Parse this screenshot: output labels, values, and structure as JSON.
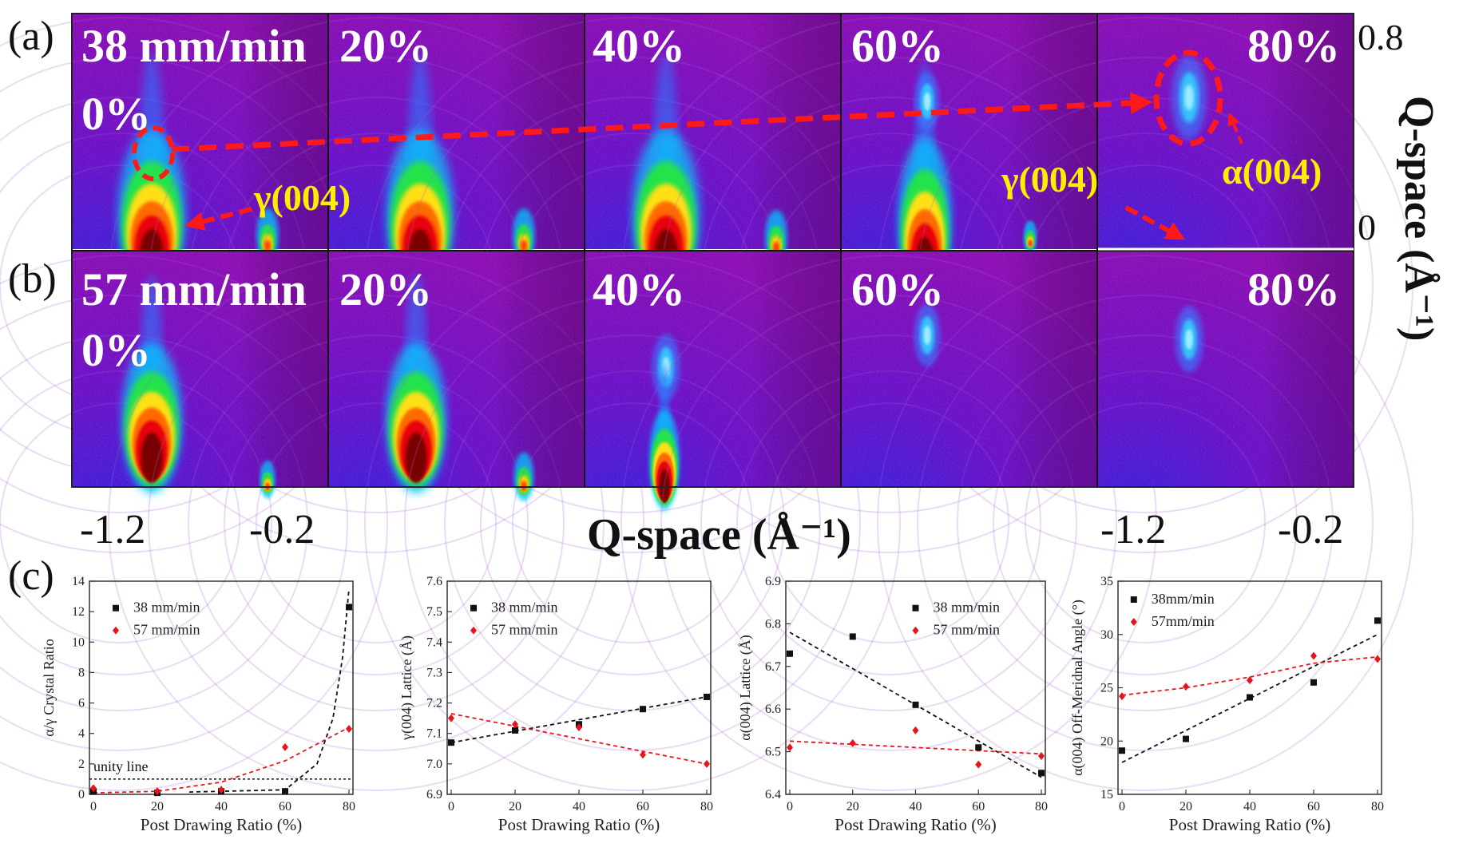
{
  "panel_labels": {
    "a": "(a)",
    "b": "(b)",
    "c": "(c)"
  },
  "row_a": {
    "tiles": [
      {
        "label_line1": "38 mm/min",
        "label_line2": "0%"
      },
      {
        "label_line1": "20%",
        "label_line2": ""
      },
      {
        "label_line1": "40%",
        "label_line2": ""
      },
      {
        "label_line1": "60%",
        "label_line2": ""
      },
      {
        "label_line1": "80%",
        "label_line2": ""
      }
    ],
    "annotations": {
      "gamma_left": "γ(004)",
      "gamma_right": "γ(004)",
      "alpha": "α(004)"
    }
  },
  "row_b": {
    "tiles": [
      {
        "label_line1": "57 mm/min",
        "label_line2": "0%"
      },
      {
        "label_line1": "20%",
        "label_line2": ""
      },
      {
        "label_line1": "40%",
        "label_line2": ""
      },
      {
        "label_line1": "60%",
        "label_line2": ""
      },
      {
        "label_line1": "80%",
        "label_line2": ""
      }
    ]
  },
  "q_axes": {
    "right_label": "Q-space (Å⁻¹)",
    "right_ticks": [
      "0.8",
      "0"
    ],
    "bottom_label": "Q-space (Å⁻¹)",
    "bottom_ticks": [
      "-1.2",
      "-0.2",
      "-1.2",
      "-0.2"
    ]
  },
  "colors": {
    "red_series": "#e8141c",
    "black_series": "#111111",
    "annotation_yellow": "#ffee00",
    "arrow_red": "#ff1a1a"
  },
  "chart_data": [
    {
      "type": "scatter",
      "xlabel": "Post Drawing Ratio (%)",
      "ylabel": "α/γ Crystal Ratio",
      "x_ticks": [
        "0",
        "20",
        "40",
        "60",
        "80"
      ],
      "y_ticks": [
        "0",
        "2",
        "4",
        "6",
        "8",
        "10",
        "12",
        "14"
      ],
      "xlim": [
        0,
        80
      ],
      "ylim": [
        0,
        14
      ],
      "annotation": "unity line",
      "legend": "top-left",
      "series": [
        {
          "name": "38 mm/min",
          "marker": "square",
          "color": "#111111",
          "x": [
            0,
            20,
            40,
            60,
            80
          ],
          "y": [
            0.2,
            0.1,
            0.2,
            0.2,
            12.3
          ]
        },
        {
          "name": "57 mm/min",
          "marker": "diamond",
          "color": "#e8141c",
          "x": [
            0,
            20,
            40,
            60,
            80
          ],
          "y": [
            0.4,
            0.2,
            0.3,
            3.1,
            4.3
          ]
        }
      ]
    },
    {
      "type": "scatter",
      "xlabel": "Post Drawing Ratio (%)",
      "ylabel": "γ(004) Lattice (Å)",
      "x_ticks": [
        "0",
        "20",
        "40",
        "60",
        "80"
      ],
      "y_ticks": [
        "6.9",
        "7.0",
        "7.1",
        "7.2",
        "7.3",
        "7.4",
        "7.5",
        "7.6"
      ],
      "xlim": [
        0,
        80
      ],
      "ylim": [
        6.9,
        7.6
      ],
      "legend": "top-left",
      "series": [
        {
          "name": "38 mm/min",
          "marker": "square",
          "color": "#111111",
          "x": [
            0,
            20,
            40,
            60,
            80
          ],
          "y": [
            7.07,
            7.11,
            7.13,
            7.18,
            7.22
          ]
        },
        {
          "name": "57 mm/min",
          "marker": "diamond",
          "color": "#e8141c",
          "x": [
            0,
            20,
            40,
            60,
            80
          ],
          "y": [
            7.15,
            7.13,
            7.12,
            7.03,
            7.0
          ]
        }
      ]
    },
    {
      "type": "scatter",
      "xlabel": "Post Drawing Ratio (%)",
      "ylabel": "α(004) Lattice (Å)",
      "x_ticks": [
        "0",
        "20",
        "40",
        "60",
        "80"
      ],
      "y_ticks": [
        "6.4",
        "6.5",
        "6.6",
        "6.7",
        "6.8",
        "6.9"
      ],
      "xlim": [
        0,
        80
      ],
      "ylim": [
        6.4,
        6.9
      ],
      "legend": "top-right",
      "series": [
        {
          "name": "38 mm/min",
          "marker": "square",
          "color": "#111111",
          "x": [
            0,
            20,
            40,
            60,
            80
          ],
          "y": [
            6.73,
            6.77,
            6.61,
            6.51,
            6.45
          ]
        },
        {
          "name": "57 mm/min",
          "marker": "diamond",
          "color": "#e8141c",
          "x": [
            0,
            20,
            40,
            60,
            80
          ],
          "y": [
            6.51,
            6.52,
            6.55,
            6.47,
            6.49
          ]
        }
      ]
    },
    {
      "type": "scatter",
      "xlabel": "Post Drawing Ratio (%)",
      "ylabel": "α(004) Off-Meridnal Angle (°)",
      "x_ticks": [
        "0",
        "20",
        "40",
        "60",
        "80"
      ],
      "y_ticks": [
        "15",
        "20",
        "25",
        "30",
        "35"
      ],
      "xlim": [
        0,
        80
      ],
      "ylim": [
        15,
        35
      ],
      "legend": "top-left",
      "series": [
        {
          "name": "38mm/min",
          "marker": "square",
          "color": "#111111",
          "x": [
            0,
            20,
            40,
            60,
            80
          ],
          "y": [
            19.1,
            20.2,
            24.1,
            25.5,
            31.3
          ]
        },
        {
          "name": "57mm/min",
          "marker": "diamond",
          "color": "#e8141c",
          "x": [
            0,
            20,
            40,
            60,
            80
          ],
          "y": [
            24.2,
            25.1,
            25.7,
            28.0,
            27.7
          ]
        }
      ]
    }
  ]
}
